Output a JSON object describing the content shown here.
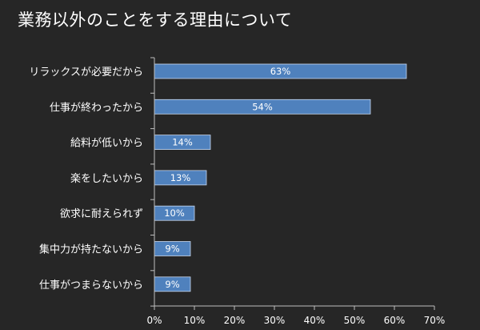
{
  "chart_data": {
    "type": "bar",
    "orientation": "horizontal",
    "title": "業務以外のことをする理由について",
    "categories": [
      "リラックスが必要だから",
      "仕事が終わったから",
      "給料が低いから",
      "楽をしたいから",
      "欲求に耐えられず",
      "集中力が持たないから",
      "仕事がつまらないから"
    ],
    "values": [
      63,
      54,
      14,
      13,
      10,
      9,
      9
    ],
    "data_labels": [
      "63%",
      "54%",
      "14%",
      "13%",
      "10%",
      "9%",
      "9%"
    ],
    "xlim": [
      0,
      70
    ],
    "xticks": [
      0,
      10,
      20,
      30,
      40,
      50,
      60,
      70
    ],
    "xtick_labels": [
      "0%",
      "10%",
      "20%",
      "30%",
      "40%",
      "50%",
      "60%",
      "70%"
    ],
    "xlabel": "",
    "ylabel": "",
    "grid": false,
    "legend": "none",
    "colors": {
      "background": "#262626",
      "bar_fill": "#4f81bd",
      "bar_stroke": "#c8d8ee",
      "axis": "#bfbfbf",
      "text": "#ffffff"
    }
  }
}
